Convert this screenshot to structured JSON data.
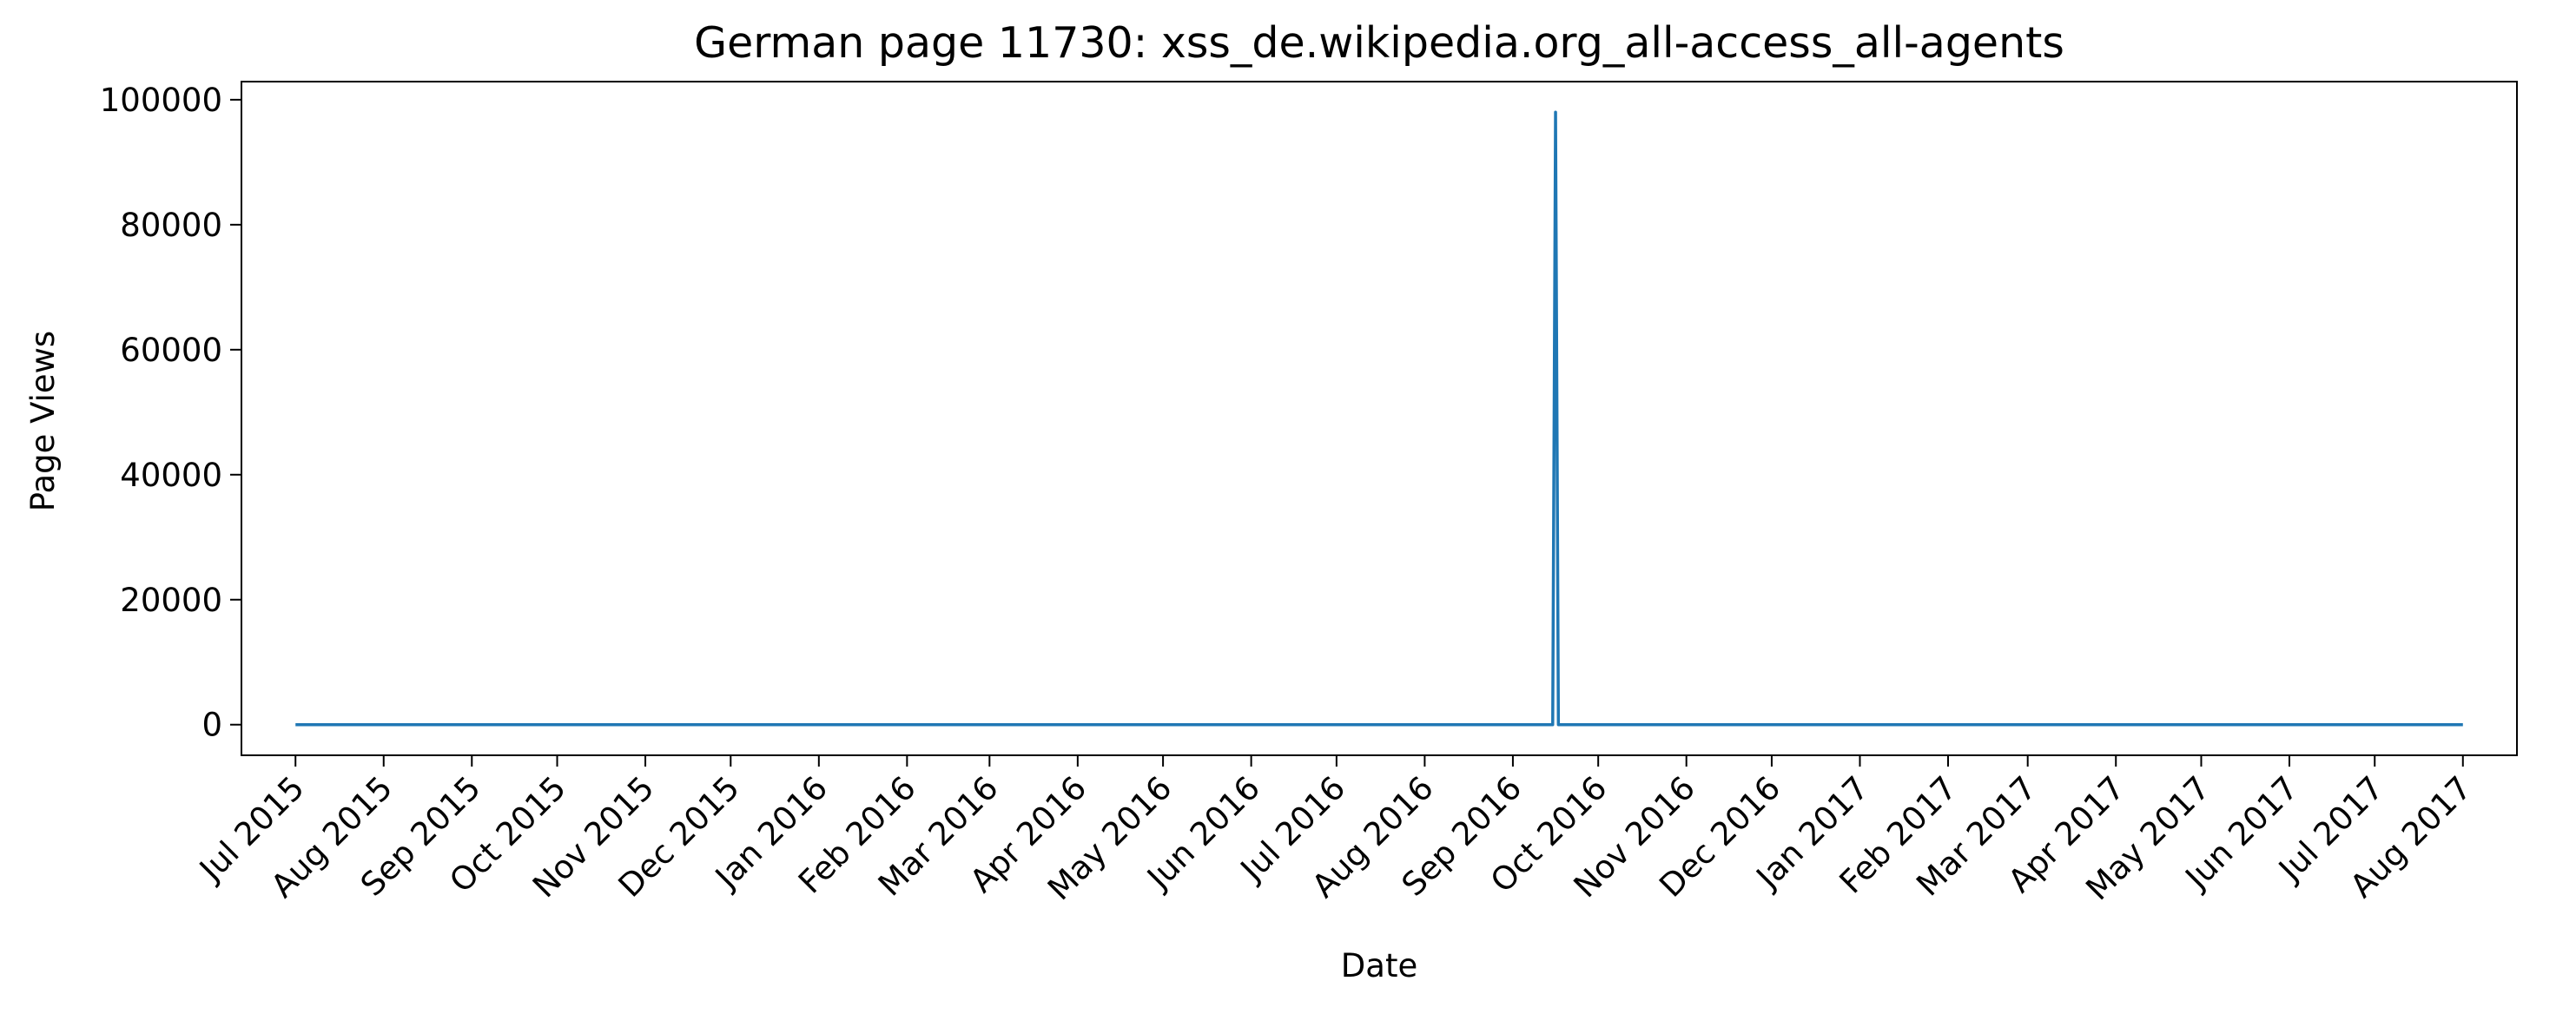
{
  "chart_data": {
    "type": "line",
    "title": "German page 11730: xss_de.wikipedia.org_all-access_all-agents",
    "x_label": "Date",
    "y_label": "Page Views",
    "x": [
      "2015-07-01",
      "2016-09-15",
      "2016-09-16",
      "2016-09-17",
      "2017-08-01"
    ],
    "series": [
      {
        "name": "xss_de.wikipedia.org_all-access_all-agents",
        "color": "#1f77b4",
        "values": [
          0,
          0,
          98000,
          0,
          0
        ]
      }
    ],
    "xlim": [
      "2015-06-12",
      "2017-08-20"
    ],
    "xticks": [
      {
        "value": "2015-07-01",
        "label": "Jul 2015"
      },
      {
        "value": "2015-08-01",
        "label": "Aug 2015"
      },
      {
        "value": "2015-09-01",
        "label": "Sep 2015"
      },
      {
        "value": "2015-10-01",
        "label": "Oct 2015"
      },
      {
        "value": "2015-11-01",
        "label": "Nov 2015"
      },
      {
        "value": "2015-12-01",
        "label": "Dec 2015"
      },
      {
        "value": "2016-01-01",
        "label": "Jan 2016"
      },
      {
        "value": "2016-02-01",
        "label": "Feb 2016"
      },
      {
        "value": "2016-03-01",
        "label": "Mar 2016"
      },
      {
        "value": "2016-04-01",
        "label": "Apr 2016"
      },
      {
        "value": "2016-05-01",
        "label": "May 2016"
      },
      {
        "value": "2016-06-01",
        "label": "Jun 2016"
      },
      {
        "value": "2016-07-01",
        "label": "Jul 2016"
      },
      {
        "value": "2016-08-01",
        "label": "Aug 2016"
      },
      {
        "value": "2016-09-01",
        "label": "Sep 2016"
      },
      {
        "value": "2016-10-01",
        "label": "Oct 2016"
      },
      {
        "value": "2016-11-01",
        "label": "Nov 2016"
      },
      {
        "value": "2016-12-01",
        "label": "Dec 2016"
      },
      {
        "value": "2017-01-01",
        "label": "Jan 2017"
      },
      {
        "value": "2017-02-01",
        "label": "Feb 2017"
      },
      {
        "value": "2017-03-01",
        "label": "Mar 2017"
      },
      {
        "value": "2017-04-01",
        "label": "Apr 2017"
      },
      {
        "value": "2017-05-01",
        "label": "May 2017"
      },
      {
        "value": "2017-06-01",
        "label": "Jun 2017"
      },
      {
        "value": "2017-07-01",
        "label": "Jul 2017"
      },
      {
        "value": "2017-08-01",
        "label": "Aug 2017"
      }
    ],
    "ylim": [
      -4900,
      102900
    ],
    "yticks": [
      0,
      20000,
      40000,
      60000,
      80000,
      100000
    ],
    "grid": false
  }
}
